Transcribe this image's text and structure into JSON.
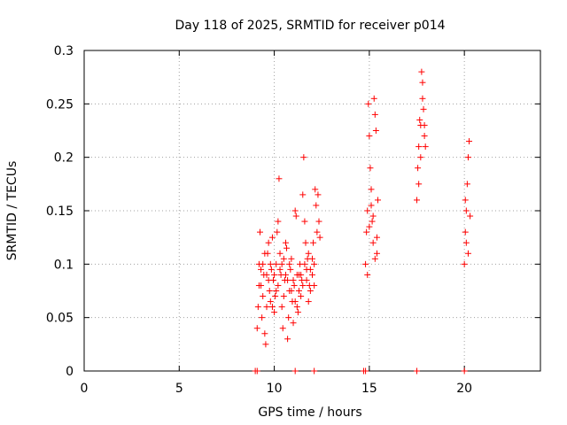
{
  "colors": {
    "points": "#ff0000",
    "background": "#ffffff",
    "axis": "#000000",
    "grid": "#a0a0a0"
  },
  "chart_data": {
    "type": "scatter",
    "title": "Day 118 of 2025, SRMTID for receiver p014",
    "xlabel": "GPS time / hours",
    "ylabel": "SRMTID / TECUs",
    "xlim": [
      0,
      24
    ],
    "ylim": [
      0,
      0.3
    ],
    "grid": true,
    "marker": "plus",
    "xticks": [
      0,
      5,
      10,
      15,
      20
    ],
    "xtick_labels": [
      "0",
      "5",
      "10",
      "15",
      "20"
    ],
    "yticks": [
      0,
      0.05,
      0.1,
      0.15,
      0.2,
      0.25,
      0.3
    ],
    "ytick_labels": [
      "0",
      "0.05",
      "0.1",
      "0.15",
      "0.2",
      "0.25",
      "0.3"
    ],
    "series": [
      {
        "name": "SRMTID",
        "points": [
          [
            9.1,
            0.04
          ],
          [
            9.15,
            0.06
          ],
          [
            9.2,
            0.1
          ],
          [
            9.25,
            0.13
          ],
          [
            9.3,
            0.08
          ],
          [
            9.35,
            0.05
          ],
          [
            9.4,
            0.07
          ],
          [
            9.45,
            0.09
          ],
          [
            9.5,
            0.035
          ],
          [
            9.55,
            0.025
          ],
          [
            9.6,
            0.06
          ],
          [
            9.65,
            0.11
          ],
          [
            9.7,
            0.12
          ],
          [
            9.75,
            0.075
          ],
          [
            9.8,
            0.065
          ],
          [
            9.85,
            0.095
          ],
          [
            9.9,
            0.125
          ],
          [
            9.95,
            0.085
          ],
          [
            10.0,
            0.055
          ],
          [
            10.05,
            0.07
          ],
          [
            10.1,
            0.1
          ],
          [
            10.15,
            0.13
          ],
          [
            10.2,
            0.14
          ],
          [
            10.25,
            0.18
          ],
          [
            10.3,
            0.11
          ],
          [
            10.35,
            0.09
          ],
          [
            10.4,
            0.06
          ],
          [
            10.45,
            0.04
          ],
          [
            10.5,
            0.07
          ],
          [
            10.55,
            0.085
          ],
          [
            10.6,
            0.12
          ],
          [
            10.65,
            0.115
          ],
          [
            10.7,
            0.03
          ],
          [
            10.75,
            0.05
          ],
          [
            10.8,
            0.075
          ],
          [
            10.85,
            0.095
          ],
          [
            10.9,
            0.105
          ],
          [
            10.95,
            0.065
          ],
          [
            11.0,
            0.045
          ],
          [
            11.05,
            0.08
          ],
          [
            11.1,
            0.15
          ],
          [
            11.15,
            0.145
          ],
          [
            11.2,
            0.06
          ],
          [
            11.25,
            0.055
          ],
          [
            11.3,
            0.09
          ],
          [
            11.35,
            0.1
          ],
          [
            11.4,
            0.07
          ],
          [
            11.45,
            0.085
          ],
          [
            11.5,
            0.165
          ],
          [
            11.55,
            0.2
          ],
          [
            11.6,
            0.14
          ],
          [
            11.65,
            0.12
          ],
          [
            11.7,
            0.095
          ],
          [
            11.75,
            0.105
          ],
          [
            11.8,
            0.065
          ],
          [
            11.85,
            0.08
          ],
          [
            11.9,
            0.075
          ],
          [
            12.0,
            0.09
          ],
          [
            12.05,
            0.12
          ],
          [
            12.1,
            0.1
          ],
          [
            12.15,
            0.17
          ],
          [
            12.2,
            0.155
          ],
          [
            12.25,
            0.13
          ],
          [
            12.3,
            0.165
          ],
          [
            12.35,
            0.14
          ],
          [
            12.4,
            0.125
          ],
          [
            9.2,
            0.08
          ],
          [
            9.3,
            0.095
          ],
          [
            9.5,
            0.11
          ],
          [
            9.7,
            0.085
          ],
          [
            9.9,
            0.06
          ],
          [
            10.1,
            0.075
          ],
          [
            10.3,
            0.095
          ],
          [
            10.5,
            0.105
          ],
          [
            10.7,
            0.085
          ],
          [
            10.9,
            0.075
          ],
          [
            11.1,
            0.065
          ],
          [
            11.3,
            0.075
          ],
          [
            11.5,
            0.08
          ],
          [
            11.7,
            0.085
          ],
          [
            11.9,
            0.095
          ],
          [
            12.1,
            0.08
          ],
          [
            9.4,
            0.1
          ],
          [
            9.6,
            0.09
          ],
          [
            9.8,
            0.1
          ],
          [
            10.0,
            0.09
          ],
          [
            10.2,
            0.08
          ],
          [
            10.4,
            0.1
          ],
          [
            10.6,
            0.09
          ],
          [
            10.8,
            0.1
          ],
          [
            11.0,
            0.085
          ],
          [
            11.2,
            0.09
          ],
          [
            11.4,
            0.09
          ],
          [
            11.6,
            0.1
          ],
          [
            11.8,
            0.11
          ],
          [
            12.0,
            0.105
          ],
          [
            14.8,
            0.1
          ],
          [
            14.85,
            0.13
          ],
          [
            14.9,
            0.15
          ],
          [
            14.95,
            0.25
          ],
          [
            15.0,
            0.22
          ],
          [
            15.05,
            0.19
          ],
          [
            15.1,
            0.17
          ],
          [
            15.15,
            0.14
          ],
          [
            15.2,
            0.12
          ],
          [
            15.25,
            0.255
          ],
          [
            15.3,
            0.24
          ],
          [
            15.35,
            0.225
          ],
          [
            15.4,
            0.11
          ],
          [
            15.45,
            0.16
          ],
          [
            14.9,
            0.09
          ],
          [
            15.0,
            0.135
          ],
          [
            15.1,
            0.155
          ],
          [
            15.2,
            0.145
          ],
          [
            15.3,
            0.105
          ],
          [
            15.4,
            0.125
          ],
          [
            17.5,
            0.16
          ],
          [
            17.55,
            0.19
          ],
          [
            17.6,
            0.21
          ],
          [
            17.65,
            0.235
          ],
          [
            17.7,
            0.2
          ],
          [
            17.75,
            0.28
          ],
          [
            17.8,
            0.27
          ],
          [
            17.85,
            0.245
          ],
          [
            17.9,
            0.22
          ],
          [
            17.95,
            0.21
          ],
          [
            17.6,
            0.175
          ],
          [
            17.7,
            0.23
          ],
          [
            17.8,
            0.255
          ],
          [
            17.9,
            0.23
          ],
          [
            20.0,
            0.1
          ],
          [
            20.05,
            0.13
          ],
          [
            20.1,
            0.15
          ],
          [
            20.15,
            0.175
          ],
          [
            20.2,
            0.2
          ],
          [
            20.25,
            0.215
          ],
          [
            20.3,
            0.145
          ],
          [
            20.1,
            0.12
          ],
          [
            20.2,
            0.11
          ],
          [
            20.05,
            0.16
          ],
          [
            9.0,
            0.0
          ],
          [
            9.1,
            0.0
          ],
          [
            11.1,
            0.0
          ],
          [
            12.1,
            0.0
          ],
          [
            14.7,
            0.0
          ],
          [
            14.8,
            0.0
          ],
          [
            17.5,
            0.0
          ],
          [
            20.0,
            0.0
          ]
        ]
      }
    ]
  }
}
